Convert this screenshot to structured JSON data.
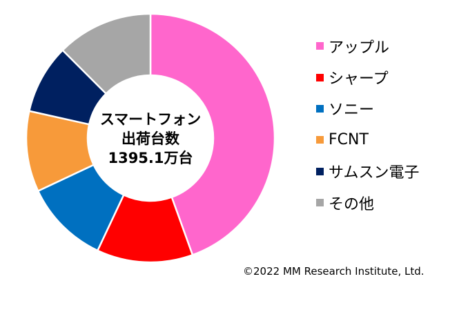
{
  "chart_data": {
    "type": "pie",
    "center_label": [
      "スマートフォン",
      "出荷台数",
      "1395.1万台"
    ],
    "categories": [
      "アップル",
      "シャープ",
      "ソニー",
      "FCNT",
      "サムスン電子",
      "その他"
    ],
    "values": [
      44.5,
      12.5,
      11.0,
      10.5,
      9.0,
      12.5
    ],
    "colors": [
      "#FF66CC",
      "#FF0000",
      "#0070C0",
      "#F79A3A",
      "#002060",
      "#A6A6A6"
    ],
    "legend_position": "right"
  },
  "copyright": "©2022 MM Research Institute, Ltd."
}
